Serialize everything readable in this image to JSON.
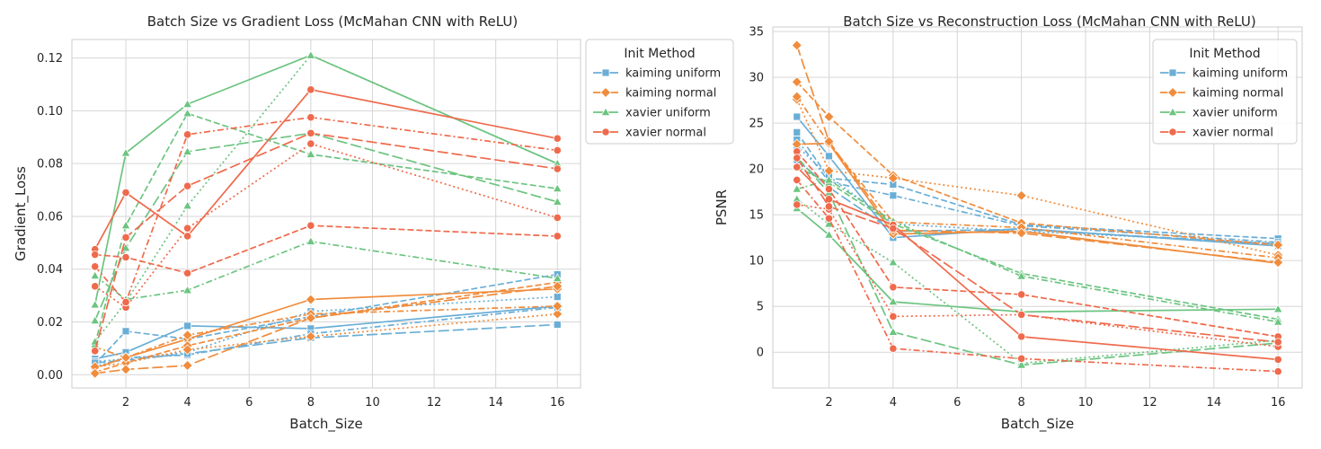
{
  "chart_data": [
    {
      "type": "line",
      "title": "Batch Size vs Gradient Loss (McMahan CNN with ReLU)",
      "xlabel": "Batch_Size",
      "ylabel": "Gradient_Loss",
      "xlim": [
        0.25,
        16.75
      ],
      "ylim": [
        -0.005,
        0.127
      ],
      "xticks": [
        2,
        4,
        6,
        8,
        10,
        12,
        14,
        16
      ],
      "xtick_labels": [
        "2",
        "4",
        "6",
        "8",
        "10",
        "12",
        "14",
        "16"
      ],
      "yticks": [
        0.0,
        0.02,
        0.04,
        0.06,
        0.08,
        0.1,
        0.12
      ],
      "ytick_labels": [
        "0.00",
        "0.02",
        "0.04",
        "0.06",
        "0.08",
        "0.10",
        "0.12"
      ],
      "grid": true,
      "legend": {
        "title": "Init Method",
        "placement": "outside-right",
        "entries": [
          "kaiming uniform",
          "kaiming normal",
          "xavier uniform",
          "xavier normal"
        ]
      },
      "x": [
        1,
        2,
        4,
        8,
        16
      ],
      "series": [
        {
          "name": "kaiming uniform",
          "color": "#6aaed6",
          "marker": "square",
          "dash": "solid",
          "values": [
            0.006,
            0.0085,
            0.0185,
            0.0175,
            0.026
          ]
        },
        {
          "color": "#6aaed6",
          "marker": "square",
          "dash": "dashed",
          "values": [
            0.004,
            0.0165,
            0.0135,
            0.022,
            0.038
          ]
        },
        {
          "color": "#6aaed6",
          "marker": "square",
          "dash": "dotted",
          "values": [
            0.005,
            0.006,
            0.0085,
            0.024,
            0.0295
          ]
        },
        {
          "color": "#6aaed6",
          "marker": "square",
          "dash": "dashdot",
          "values": [
            0.003,
            0.0065,
            0.0075,
            0.0155,
            0.0255
          ]
        },
        {
          "color": "#6aaed6",
          "marker": "square",
          "dash": "longdash",
          "values": [
            0.0045,
            0.0055,
            0.008,
            0.014,
            0.019
          ]
        },
        {
          "name": "kaiming normal",
          "color": "#f08c3c",
          "marker": "diamond",
          "dash": "solid",
          "values": [
            0.0025,
            0.0065,
            0.0135,
            0.0285,
            0.0325
          ]
        },
        {
          "color": "#f08c3c",
          "marker": "diamond",
          "dash": "dashed",
          "values": [
            0.001,
            0.0045,
            0.011,
            0.0215,
            0.035
          ]
        },
        {
          "color": "#f08c3c",
          "marker": "diamond",
          "dash": "dotted",
          "values": [
            0.003,
            0.0045,
            0.0095,
            0.0145,
            0.023
          ]
        },
        {
          "color": "#f08c3c",
          "marker": "diamond",
          "dash": "dashdot",
          "values": [
            0.0105,
            0.0065,
            0.015,
            0.023,
            0.026
          ]
        },
        {
          "color": "#f08c3c",
          "marker": "diamond",
          "dash": "longdash",
          "values": [
            0.0005,
            0.002,
            0.0035,
            0.0215,
            0.0335
          ]
        },
        {
          "name": "xavier uniform",
          "color": "#6cc480",
          "marker": "triangle",
          "dash": "solid",
          "values": [
            0.0265,
            0.084,
            0.1025,
            0.121,
            0.08
          ]
        },
        {
          "color": "#6cc480",
          "marker": "triangle",
          "dash": "dashed",
          "values": [
            0.0115,
            0.0565,
            0.099,
            0.0835,
            0.0705
          ]
        },
        {
          "color": "#6cc480",
          "marker": "triangle",
          "dash": "dotted",
          "values": [
            0.0125,
            0.0275,
            0.064,
            0.121,
            0.08
          ]
        },
        {
          "color": "#6cc480",
          "marker": "triangle",
          "dash": "dashdot",
          "values": [
            0.0375,
            0.0285,
            0.032,
            0.0505,
            0.0365
          ]
        },
        {
          "color": "#6cc480",
          "marker": "triangle",
          "dash": "longdash",
          "values": [
            0.0205,
            0.048,
            0.0845,
            0.0915,
            0.0655
          ]
        },
        {
          "name": "xavier normal",
          "color": "#ef6a4c",
          "marker": "circle",
          "dash": "solid",
          "values": [
            0.0475,
            0.069,
            0.0525,
            0.108,
            0.0895
          ]
        },
        {
          "color": "#ef6a4c",
          "marker": "circle",
          "dash": "dashed",
          "values": [
            0.0455,
            0.0445,
            0.0385,
            0.0565,
            0.0525
          ]
        },
        {
          "color": "#ef6a4c",
          "marker": "circle",
          "dash": "dotted",
          "values": [
            0.0335,
            0.0255,
            0.0555,
            0.0875,
            0.0595
          ]
        },
        {
          "color": "#ef6a4c",
          "marker": "circle",
          "dash": "dashdot",
          "values": [
            0.041,
            0.0275,
            0.091,
            0.0975,
            0.085
          ]
        },
        {
          "color": "#ef6a4c",
          "marker": "circle",
          "dash": "longdash",
          "values": [
            0.009,
            0.052,
            0.0715,
            0.0915,
            0.078
          ]
        }
      ]
    },
    {
      "type": "line",
      "title": "Batch Size vs Reconstruction Loss (McMahan CNN with ReLU)",
      "xlabel": "Batch_Size",
      "ylabel": "PSNR",
      "xlim": [
        0.25,
        16.75
      ],
      "ylim": [
        -3.9,
        35.5
      ],
      "xticks": [
        2,
        4,
        6,
        8,
        10,
        12,
        14,
        16
      ],
      "xtick_labels": [
        "2",
        "4",
        "6",
        "8",
        "10",
        "12",
        "14",
        "16"
      ],
      "yticks": [
        0,
        5,
        10,
        15,
        20,
        25,
        30,
        35
      ],
      "ytick_labels": [
        "0",
        "5",
        "10",
        "15",
        "20",
        "25",
        "30",
        "35"
      ],
      "grid": true,
      "legend": {
        "title": "Init Method",
        "placement": "top-right",
        "entries": [
          "kaiming uniform",
          "kaiming normal",
          "xavier uniform",
          "xavier normal"
        ]
      },
      "x": [
        1,
        2,
        4,
        8,
        16
      ],
      "series": [
        {
          "name": "kaiming uniform",
          "color": "#6aaed6",
          "marker": "square",
          "dash": "solid",
          "values": [
            25.7,
            21.4,
            12.5,
            13.5,
            11.6
          ]
        },
        {
          "color": "#6aaed6",
          "marker": "square",
          "dash": "dashed",
          "values": [
            24.0,
            19.0,
            18.3,
            13.9,
            12.4
          ]
        },
        {
          "color": "#6aaed6",
          "marker": "square",
          "dash": "dotted",
          "values": [
            22.5,
            19.2,
            14.0,
            13.2,
            11.9
          ]
        },
        {
          "color": "#6aaed6",
          "marker": "square",
          "dash": "dashdot",
          "values": [
            23.2,
            18.6,
            17.1,
            13.8,
            12.0
          ]
        },
        {
          "color": "#6aaed6",
          "marker": "square",
          "dash": "longdash",
          "values": [
            21.0,
            18.0,
            13.2,
            13.4,
            11.8
          ]
        },
        {
          "name": "kaiming normal",
          "color": "#f08c3c",
          "marker": "diamond",
          "dash": "solid",
          "values": [
            22.7,
            22.8,
            12.9,
            13.2,
            9.7
          ]
        },
        {
          "color": "#f08c3c",
          "marker": "diamond",
          "dash": "dashed",
          "values": [
            29.5,
            25.7,
            19.3,
            14.1,
            11.7
          ]
        },
        {
          "color": "#f08c3c",
          "marker": "diamond",
          "dash": "dotted",
          "values": [
            27.6,
            19.8,
            19.0,
            17.1,
            10.6
          ]
        },
        {
          "color": "#f08c3c",
          "marker": "diamond",
          "dash": "dashdot",
          "values": [
            27.9,
            22.8,
            14.2,
            13.6,
            10.3
          ]
        },
        {
          "color": "#f08c3c",
          "marker": "diamond",
          "dash": "longdash",
          "values": [
            33.5,
            23.0,
            13.3,
            13.0,
            9.8
          ]
        },
        {
          "name": "xavier uniform",
          "color": "#6cc480",
          "marker": "triangle",
          "dash": "solid",
          "values": [
            15.7,
            12.8,
            5.5,
            4.4,
            4.7
          ]
        },
        {
          "color": "#6cc480",
          "marker": "triangle",
          "dash": "dashed",
          "values": [
            20.2,
            18.5,
            14.0,
            8.6,
            3.6
          ]
        },
        {
          "color": "#6cc480",
          "marker": "triangle",
          "dash": "dotted",
          "values": [
            16.7,
            14.0,
            9.8,
            -1.2,
            1.3
          ]
        },
        {
          "color": "#6cc480",
          "marker": "triangle",
          "dash": "dashdot",
          "values": [
            17.8,
            18.8,
            14.3,
            8.3,
            3.3
          ]
        },
        {
          "color": "#6cc480",
          "marker": "triangle",
          "dash": "longdash",
          "values": [
            21.3,
            17.4,
            2.2,
            -1.4,
            1.0
          ]
        },
        {
          "name": "xavier normal",
          "color": "#ef6a4c",
          "marker": "circle",
          "dash": "solid",
          "values": [
            20.2,
            16.7,
            13.9,
            1.7,
            -0.8
          ]
        },
        {
          "color": "#ef6a4c",
          "marker": "circle",
          "dash": "dashed",
          "values": [
            21.9,
            17.8,
            7.1,
            6.3,
            1.7
          ]
        },
        {
          "color": "#ef6a4c",
          "marker": "circle",
          "dash": "dotted",
          "values": [
            16.1,
            15.6,
            3.9,
            4.1,
            0.6
          ]
        },
        {
          "color": "#ef6a4c",
          "marker": "circle",
          "dash": "dashdot",
          "values": [
            18.8,
            14.6,
            0.4,
            -0.7,
            -2.1
          ]
        },
        {
          "color": "#ef6a4c",
          "marker": "circle",
          "dash": "longdash",
          "values": [
            21.2,
            15.9,
            13.5,
            4.1,
            1.1
          ]
        }
      ]
    }
  ]
}
